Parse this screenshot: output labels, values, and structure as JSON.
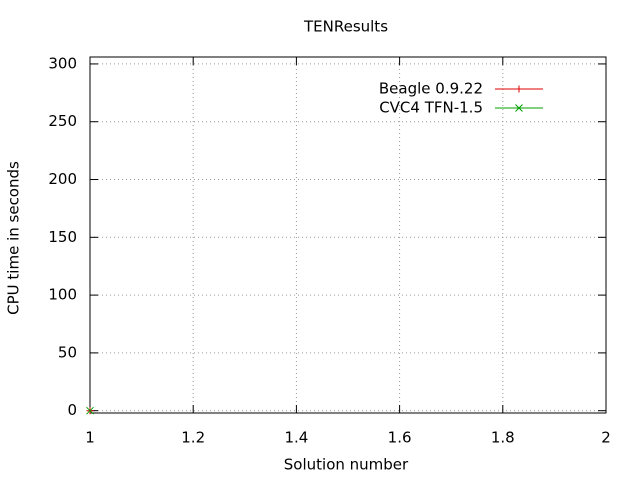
{
  "chart_data": {
    "type": "scatter",
    "title": "TENResults",
    "x_label": "Solution number",
    "y_label": "CPU time in seconds",
    "x": [
      1
    ],
    "series": [
      {
        "name": "Beagle 0.9.22",
        "color": "#e00000",
        "marker": "+",
        "values": [
          0
        ]
      },
      {
        "name": "CVC4 TFN-1.5",
        "color": "#00a000",
        "marker": "x",
        "values": [
          0
        ]
      }
    ],
    "xlim": [
      1,
      2
    ],
    "xticks": [
      1,
      1.2,
      1.4,
      1.6,
      1.8,
      2
    ],
    "ylim": [
      -2,
      306
    ],
    "yticks": [
      0,
      50,
      100,
      150,
      200,
      250,
      300
    ],
    "grid": true,
    "legend": "top-right"
  }
}
